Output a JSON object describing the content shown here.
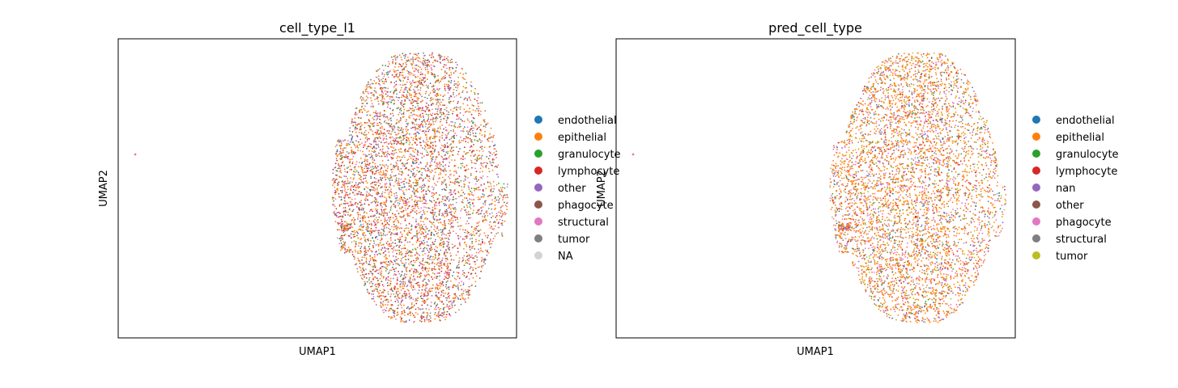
{
  "chart_data": [
    {
      "type": "scatter",
      "title": "cell_type_l1",
      "xlabel": "UMAP1",
      "ylabel": "UMAP2",
      "grid": false,
      "legend_placement": "right, outside plot",
      "legend": [
        {
          "label": "endothelial",
          "color": "#1f77b4"
        },
        {
          "label": "epithelial",
          "color": "#ff7f0e"
        },
        {
          "label": "granulocyte",
          "color": "#2ca02c"
        },
        {
          "label": "lymphocyte",
          "color": "#d62728"
        },
        {
          "label": "other",
          "color": "#9467bd"
        },
        {
          "label": "phagocyte",
          "color": "#8c564b"
        },
        {
          "label": "structural",
          "color": "#e377c2"
        },
        {
          "label": "tumor",
          "color": "#7f7f7f"
        },
        {
          "label": "NA",
          "color": "#d3d3d3"
        }
      ],
      "series_weights": {
        "epithelial": 0.4,
        "lymphocyte": 0.16,
        "tumor": 0.14,
        "structural": 0.12,
        "other": 0.06,
        "phagocyte": 0.05,
        "endothelial": 0.04,
        "granulocyte": 0.03
      }
    },
    {
      "type": "scatter",
      "title": "pred_cell_type",
      "xlabel": "UMAP1",
      "ylabel": "UMAP2",
      "grid": false,
      "legend_placement": "right, outside plot",
      "legend": [
        {
          "label": "endothelial",
          "color": "#1f77b4"
        },
        {
          "label": "epithelial",
          "color": "#ff7f0e"
        },
        {
          "label": "granulocyte",
          "color": "#2ca02c"
        },
        {
          "label": "lymphocyte",
          "color": "#d62728"
        },
        {
          "label": "nan",
          "color": "#9467bd"
        },
        {
          "label": "other",
          "color": "#8c564b"
        },
        {
          "label": "phagocyte",
          "color": "#e377c2"
        },
        {
          "label": "structural",
          "color": "#7f7f7f"
        },
        {
          "label": "tumor",
          "color": "#bcbd22"
        }
      ],
      "series_weights": {
        "epithelial": 0.55,
        "phagocyte": 0.13,
        "structural": 0.08,
        "tumor": 0.08,
        "nan": 0.07,
        "lymphocyte": 0.05,
        "endothelial": 0.02,
        "granulocyte": 0.02
      }
    }
  ]
}
